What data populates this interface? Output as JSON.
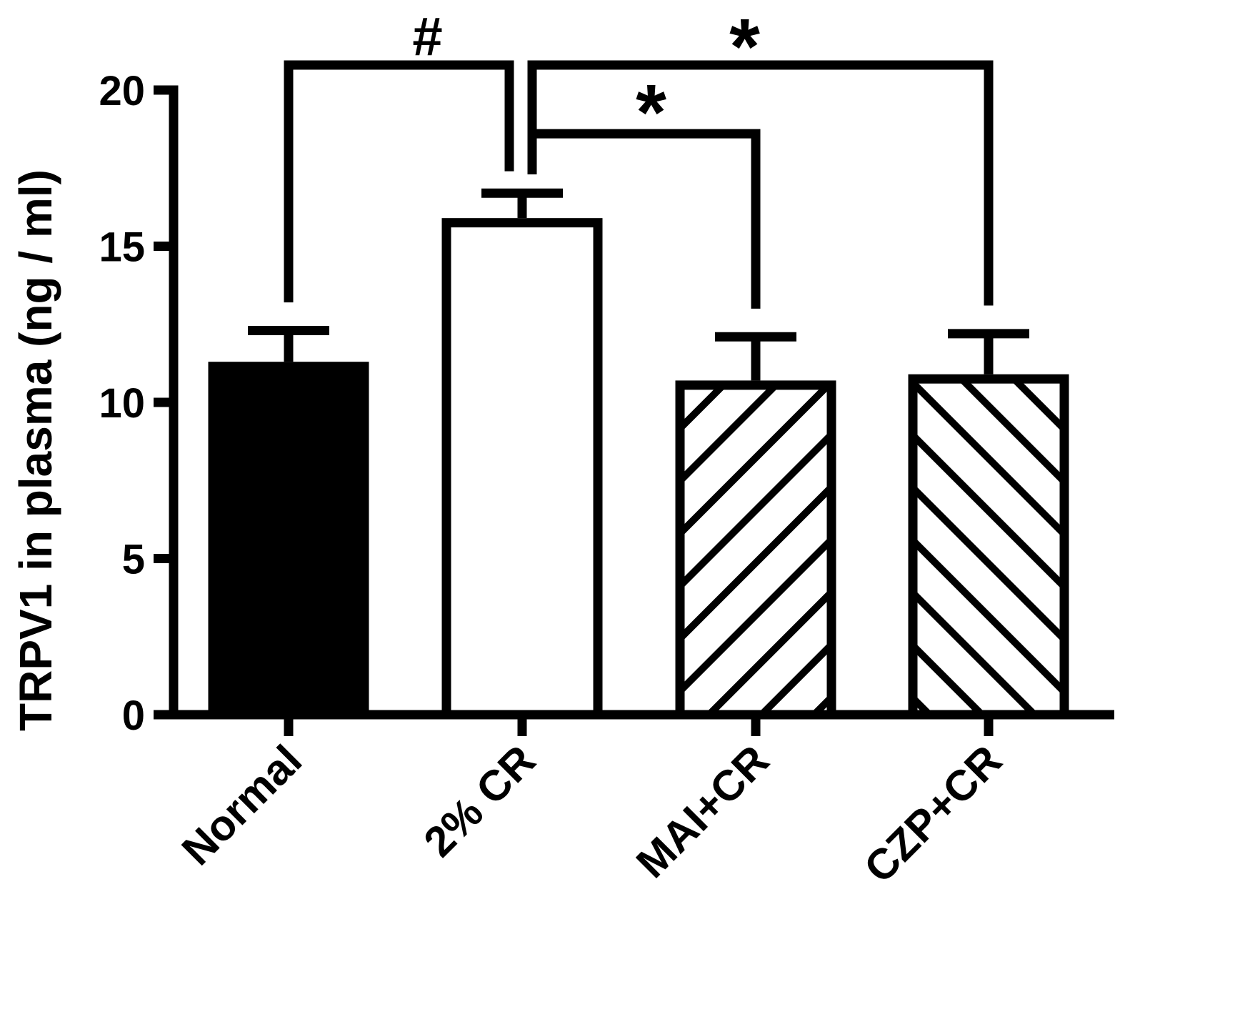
{
  "chart_data": {
    "type": "bar",
    "title": "",
    "xlabel": "",
    "ylabel": "TRPV1 in plasma (ng / ml)",
    "ylim": [
      0,
      20
    ],
    "yticks": [
      0,
      5,
      10,
      15,
      20
    ],
    "grid": false,
    "categories": [
      "Normal",
      "2% CR",
      "MAI+CR",
      "CZP+CR"
    ],
    "values": [
      11.3,
      15.9,
      10.7,
      10.9
    ],
    "errors": [
      1.0,
      0.8,
      1.4,
      1.3
    ],
    "fills": [
      "solid",
      "open",
      "hatch-back",
      "hatch-forward"
    ],
    "colors": {
      "bar": "#000000",
      "background": "#ffffff"
    },
    "significance": [
      {
        "from": 0,
        "to": 1,
        "label": "#",
        "y": 20.8
      },
      {
        "from": 1,
        "to": 2,
        "label": "*",
        "y": 18.6
      },
      {
        "from": 1,
        "to": 3,
        "label": "*",
        "y": 20.8
      }
    ]
  }
}
